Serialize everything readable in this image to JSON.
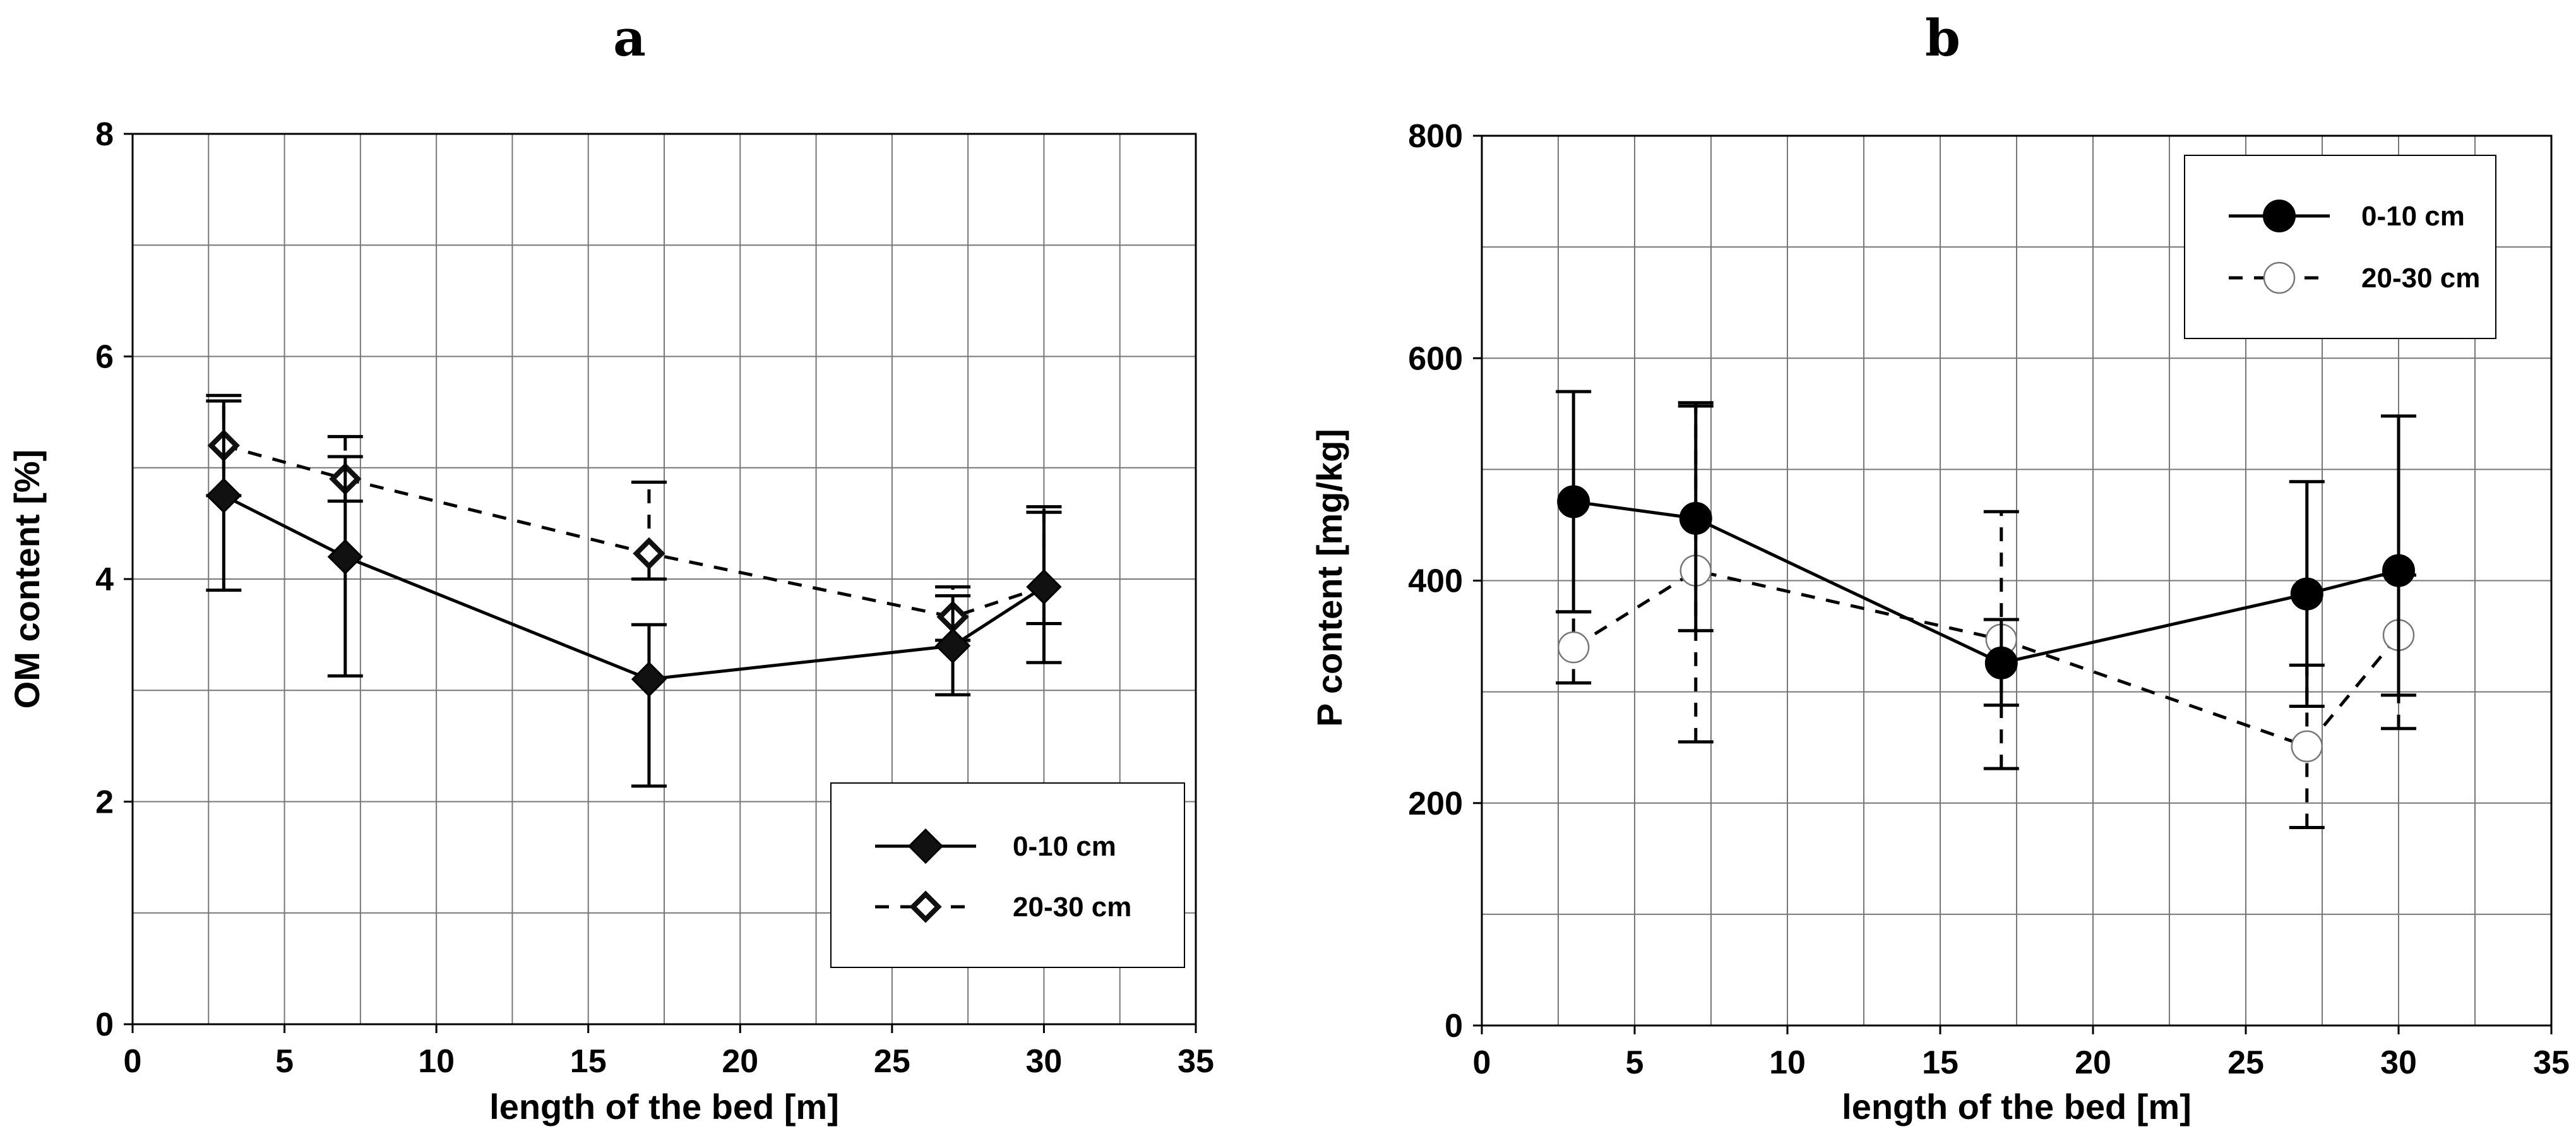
{
  "chart_data": [
    {
      "id": "a",
      "type": "line",
      "title": "a",
      "xlabel": "length of the bed [m]",
      "ylabel": "OM content [%]",
      "xlim": [
        0,
        35
      ],
      "ylim": [
        0,
        8
      ],
      "xticks": [
        0,
        5,
        10,
        15,
        20,
        25,
        30,
        35
      ],
      "yticks": [
        0,
        2,
        4,
        6,
        8
      ],
      "grid_x_step": 2.5,
      "grid_y_step": 1,
      "grid": true,
      "legend_position": "bottom-right",
      "series": [
        {
          "name": "0-10 cm",
          "marker": "diamond-filled",
          "line": "solid",
          "x": [
            3,
            7,
            17,
            27,
            30
          ],
          "y": [
            4.75,
            4.2,
            3.1,
            3.4,
            3.93
          ],
          "err_low": [
            3.9,
            3.13,
            2.14,
            2.96,
            3.25
          ],
          "err_high": [
            5.6,
            5.1,
            3.59,
            3.85,
            4.6
          ]
        },
        {
          "name": "20-30 cm",
          "marker": "diamond-open",
          "line": "dashed",
          "x": [
            3,
            7,
            17,
            27,
            30
          ],
          "y": [
            5.2,
            4.9,
            4.23,
            3.66,
            3.93
          ],
          "err_low": [
            4.75,
            4.7,
            4.0,
            3.45,
            3.6
          ],
          "err_high": [
            5.65,
            5.28,
            4.87,
            3.93,
            4.65
          ]
        }
      ]
    },
    {
      "id": "b",
      "type": "line",
      "title": "b",
      "xlabel": "length of the bed [m]",
      "ylabel": "P content [mg/kg]",
      "xlim": [
        0,
        35
      ],
      "ylim": [
        0,
        800
      ],
      "xticks": [
        0,
        5,
        10,
        15,
        20,
        25,
        30,
        35
      ],
      "yticks": [
        0,
        200,
        400,
        600,
        800
      ],
      "grid_x_step": 2.5,
      "grid_y_step": 100,
      "grid": true,
      "legend_position": "top-right",
      "series": [
        {
          "name": "0-10 cm",
          "marker": "circle-filled",
          "line": "solid",
          "x": [
            3,
            7,
            17,
            27,
            30
          ],
          "y": [
            471,
            456,
            326,
            388,
            409
          ],
          "err_low": [
            372,
            355,
            288,
            287,
            297
          ],
          "err_high": [
            570,
            557,
            365,
            489,
            548
          ]
        },
        {
          "name": "20-30 cm",
          "marker": "circle-open",
          "line": "dashed",
          "x": [
            3,
            7,
            17,
            27,
            30
          ],
          "y": [
            340,
            409,
            347,
            251,
            351
          ],
          "err_low": [
            308,
            255,
            231,
            178,
            267
          ],
          "err_high": [
            372,
            560,
            462,
            324,
            405
          ]
        }
      ]
    }
  ]
}
